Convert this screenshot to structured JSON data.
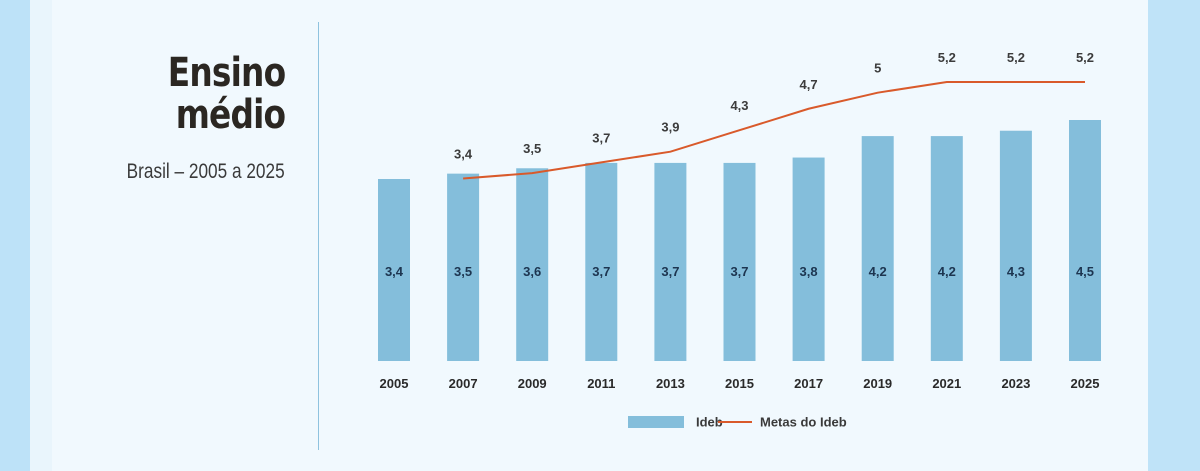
{
  "header": {
    "title_line1": "Ensino",
    "title_line2": "médio",
    "subtitle": "Brasil – 2005 a 2025"
  },
  "colors": {
    "bar": "#84bedb",
    "line": "#d95a2b",
    "label_inside": "#1d3550",
    "label_above": "#3c3c3c"
  },
  "chart_data": {
    "type": "bar",
    "categories": [
      "2005",
      "2007",
      "2009",
      "2011",
      "2013",
      "2015",
      "2017",
      "2019",
      "2021",
      "2023",
      "2025"
    ],
    "series": [
      {
        "name": "Ideb",
        "type": "bar",
        "values": [
          3.4,
          3.5,
          3.6,
          3.7,
          3.7,
          3.7,
          3.8,
          4.2,
          4.2,
          4.3,
          4.5
        ],
        "labels": [
          "3,4",
          "3,5",
          "3,6",
          "3,7",
          "3,7",
          "3,7",
          "3,8",
          "4,2",
          "4,2",
          "4,3",
          "4,5"
        ]
      },
      {
        "name": "Metas do Ideb",
        "type": "line",
        "values": [
          null,
          3.4,
          3.5,
          3.7,
          3.9,
          4.3,
          4.7,
          5.0,
          5.2,
          5.2,
          5.2
        ],
        "labels": [
          "",
          "3,4",
          "3,5",
          "3,7",
          "3,9",
          "4,3",
          "4,7",
          "5",
          "5,2",
          "5,2",
          "5,2"
        ]
      }
    ],
    "legend": [
      "Ideb",
      "Metas do Ideb"
    ],
    "legend_position": "bottom",
    "grid": false
  }
}
